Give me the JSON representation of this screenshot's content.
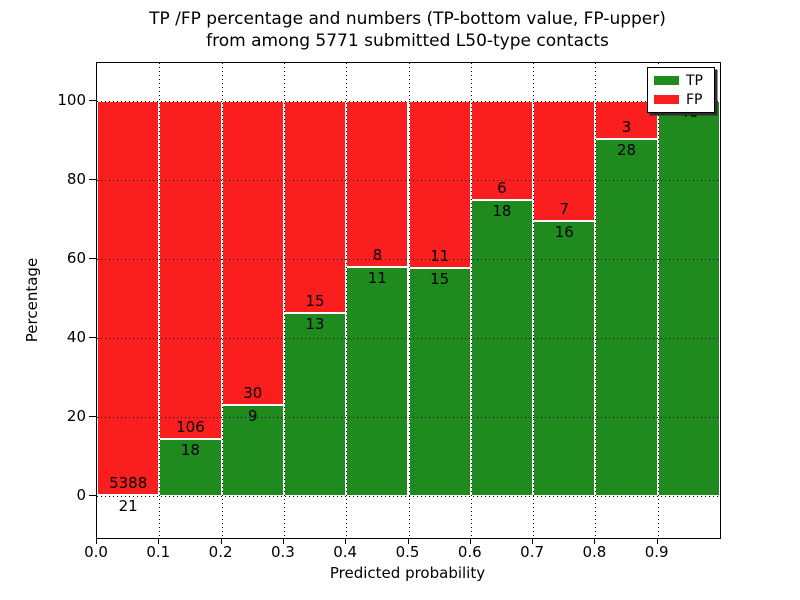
{
  "chart_data": {
    "type": "bar",
    "variant": "stacked-percentage",
    "title_line1": "TP /FP percentage and numbers (TP-bottom value, FP-upper)",
    "title_line2": "from among 5771 submitted L50-type contacts",
    "xlabel": "Predicted probability",
    "ylabel": "Percentage",
    "total_submitted": 5771,
    "xlim": [
      0.0,
      1.0
    ],
    "ylim": [
      -10.5,
      109.6
    ],
    "bin_width": 0.1,
    "x_tick_labels": [
      "0.0",
      "0.1",
      "0.2",
      "0.3",
      "0.4",
      "0.5",
      "0.6",
      "0.7",
      "0.8",
      "0.9"
    ],
    "y_tick_values": [
      0,
      20,
      40,
      60,
      80,
      100
    ],
    "y_tick_labels": [
      "0",
      "20",
      "40",
      "60",
      "80",
      "100"
    ],
    "categories": [
      "0.0-0.1",
      "0.1-0.2",
      "0.2-0.3",
      "0.3-0.4",
      "0.4-0.5",
      "0.5-0.6",
      "0.6-0.7",
      "0.7-0.8",
      "0.8-0.9",
      "0.9-1.0"
    ],
    "series": [
      {
        "name": "TP",
        "color": "#1f8b1f",
        "values": [
          21,
          18,
          9,
          13,
          11,
          15,
          18,
          16,
          28,
          48
        ]
      },
      {
        "name": "FP",
        "color": "#fb1e1e",
        "values": [
          5388,
          106,
          30,
          15,
          8,
          11,
          6,
          7,
          3,
          0
        ]
      }
    ],
    "tp_percent": [
      0.39,
      14.52,
      23.08,
      46.43,
      57.89,
      57.69,
      75.0,
      69.57,
      90.32,
      100.0
    ],
    "grid": "dotted",
    "legend": {
      "position": "upper right",
      "entries": [
        {
          "label": "TP",
          "color": "#1f8b1f"
        },
        {
          "label": "FP",
          "color": "#fb1e1e"
        }
      ]
    }
  }
}
